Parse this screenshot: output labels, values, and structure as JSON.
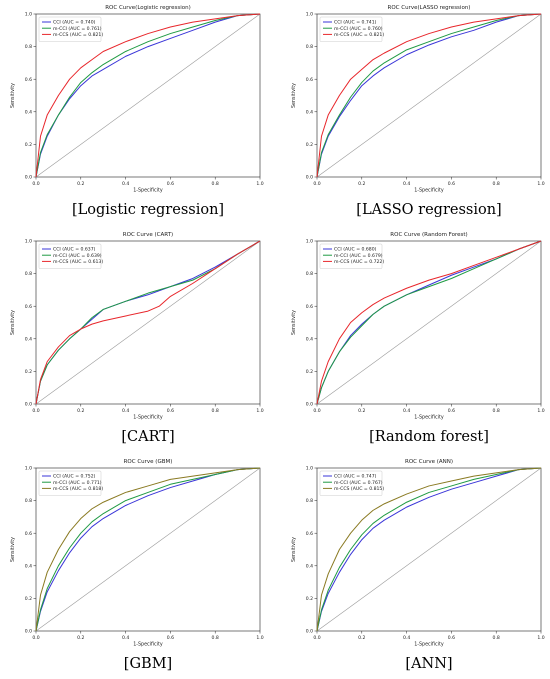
{
  "panel_captions": [
    "[Logistic regression]",
    "[LASSO regression]",
    "[CART]",
    "[Random forest]",
    "[GBM]",
    "[ANN]"
  ],
  "colors": {
    "CCI": "#3a35d8",
    "m-CCI": "#1f9a43",
    "m-CCS_red": "#e8262b",
    "m-CCS_olive": "#8a7a22",
    "diagonal": "#9a9a9a"
  },
  "chart_data": [
    {
      "type": "line",
      "title": "ROC Curve(Logistic regression)",
      "xlabel": "1-Specificity",
      "ylabel": "Sensitivity",
      "xlim": [
        0,
        1
      ],
      "ylim": [
        0,
        1
      ],
      "ticks": [
        "0.0",
        "0.2",
        "0.4",
        "0.6",
        "0.8",
        "1.0"
      ],
      "legend_position": "top-left",
      "series": [
        {
          "name": "CCI (AUC = 0.740)",
          "color_key": "CCI",
          "x": [
            0,
            0.02,
            0.05,
            0.1,
            0.15,
            0.2,
            0.25,
            0.3,
            0.4,
            0.5,
            0.6,
            0.7,
            0.8,
            0.9,
            1.0
          ],
          "y": [
            0,
            0.14,
            0.25,
            0.38,
            0.48,
            0.56,
            0.62,
            0.66,
            0.74,
            0.8,
            0.85,
            0.9,
            0.95,
            0.99,
            1.0
          ]
        },
        {
          "name": "m-CCI (AUC = 0.761)",
          "color_key": "m-CCI",
          "x": [
            0,
            0.02,
            0.05,
            0.1,
            0.15,
            0.2,
            0.25,
            0.3,
            0.4,
            0.5,
            0.6,
            0.7,
            0.8,
            0.9,
            1.0
          ],
          "y": [
            0,
            0.15,
            0.26,
            0.38,
            0.49,
            0.58,
            0.64,
            0.69,
            0.77,
            0.83,
            0.88,
            0.92,
            0.96,
            0.99,
            1.0
          ]
        },
        {
          "name": "m-CCS (AUC = 0.821)",
          "color_key": "m-CCS_red",
          "x": [
            0,
            0.02,
            0.05,
            0.1,
            0.15,
            0.2,
            0.25,
            0.3,
            0.4,
            0.5,
            0.6,
            0.7,
            0.8,
            0.9,
            1.0
          ],
          "y": [
            0,
            0.25,
            0.38,
            0.5,
            0.6,
            0.67,
            0.72,
            0.77,
            0.83,
            0.88,
            0.92,
            0.95,
            0.97,
            0.99,
            1.0
          ]
        }
      ]
    },
    {
      "type": "line",
      "title": "ROC Curve(LASSO regression)",
      "xlabel": "1-Specificity",
      "ylabel": "Sensitivity",
      "xlim": [
        0,
        1
      ],
      "ylim": [
        0,
        1
      ],
      "ticks": [
        "0.0",
        "0.2",
        "0.4",
        "0.6",
        "0.8",
        "1.0"
      ],
      "legend_position": "top-left",
      "series": [
        {
          "name": "CCI (AUC = 0.741)",
          "color_key": "CCI",
          "x": [
            0,
            0.02,
            0.05,
            0.1,
            0.15,
            0.2,
            0.25,
            0.3,
            0.4,
            0.5,
            0.6,
            0.7,
            0.8,
            0.9,
            1.0
          ],
          "y": [
            0,
            0.14,
            0.25,
            0.37,
            0.47,
            0.56,
            0.62,
            0.67,
            0.75,
            0.81,
            0.86,
            0.9,
            0.95,
            0.99,
            1.0
          ]
        },
        {
          "name": "m-CCI (AUC = 0.760)",
          "color_key": "m-CCI",
          "x": [
            0,
            0.02,
            0.05,
            0.1,
            0.15,
            0.2,
            0.25,
            0.3,
            0.4,
            0.5,
            0.6,
            0.7,
            0.8,
            0.9,
            1.0
          ],
          "y": [
            0,
            0.15,
            0.26,
            0.38,
            0.49,
            0.58,
            0.65,
            0.7,
            0.78,
            0.83,
            0.88,
            0.92,
            0.96,
            0.99,
            1.0
          ]
        },
        {
          "name": "m-CCS (AUC = 0.821)",
          "color_key": "m-CCS_red",
          "x": [
            0,
            0.02,
            0.05,
            0.1,
            0.15,
            0.2,
            0.25,
            0.3,
            0.4,
            0.5,
            0.6,
            0.7,
            0.8,
            0.9,
            1.0
          ],
          "y": [
            0,
            0.25,
            0.38,
            0.5,
            0.6,
            0.66,
            0.72,
            0.76,
            0.83,
            0.88,
            0.92,
            0.95,
            0.97,
            0.99,
            1.0
          ]
        }
      ]
    },
    {
      "type": "line",
      "title": "ROC Curve (CART)",
      "xlabel": "1-Specificity",
      "ylabel": "Sensitivity",
      "xlim": [
        0,
        1
      ],
      "ylim": [
        0,
        1
      ],
      "ticks": [
        "0.0",
        "0.2",
        "0.4",
        "0.6",
        "0.8",
        "1.0"
      ],
      "legend_position": "top-left",
      "series": [
        {
          "name": "CCI (AUC = 0.637)",
          "color_key": "CCI",
          "x": [
            0,
            0.02,
            0.05,
            0.1,
            0.15,
            0.2,
            0.25,
            0.3,
            0.4,
            0.5,
            0.6,
            0.7,
            0.8,
            0.9,
            1.0
          ],
          "y": [
            0,
            0.14,
            0.24,
            0.33,
            0.4,
            0.46,
            0.52,
            0.58,
            0.63,
            0.67,
            0.72,
            0.77,
            0.84,
            0.92,
            1.0
          ]
        },
        {
          "name": "m-CCI (AUC = 0.639)",
          "color_key": "m-CCI",
          "x": [
            0,
            0.02,
            0.05,
            0.1,
            0.15,
            0.2,
            0.25,
            0.3,
            0.4,
            0.5,
            0.6,
            0.7,
            0.8,
            0.9,
            1.0
          ],
          "y": [
            0,
            0.14,
            0.24,
            0.33,
            0.4,
            0.46,
            0.53,
            0.58,
            0.63,
            0.68,
            0.72,
            0.76,
            0.83,
            0.92,
            1.0
          ]
        },
        {
          "name": "m-CCS (AUC = 0.613)",
          "color_key": "m-CCS_red",
          "x": [
            0,
            0.02,
            0.05,
            0.1,
            0.15,
            0.2,
            0.25,
            0.3,
            0.4,
            0.5,
            0.55,
            0.6,
            0.7,
            0.8,
            0.9,
            1.0
          ],
          "y": [
            0,
            0.15,
            0.26,
            0.35,
            0.42,
            0.46,
            0.49,
            0.51,
            0.54,
            0.57,
            0.6,
            0.66,
            0.74,
            0.83,
            0.92,
            1.0
          ]
        }
      ]
    },
    {
      "type": "line",
      "title": "ROC Curve (Random Forest)",
      "xlabel": "1-Specificity",
      "ylabel": "Sensitivity",
      "xlim": [
        0,
        1
      ],
      "ylim": [
        0,
        1
      ],
      "ticks": [
        "0.0",
        "0.2",
        "0.4",
        "0.6",
        "0.8",
        "1.0"
      ],
      "legend_position": "top-left",
      "series": [
        {
          "name": "CCI (AUC = 0.680)",
          "color_key": "CCI",
          "x": [
            0,
            0.02,
            0.05,
            0.1,
            0.15,
            0.2,
            0.25,
            0.3,
            0.4,
            0.5,
            0.6,
            0.7,
            0.8,
            0.9,
            1.0
          ],
          "y": [
            0,
            0.1,
            0.2,
            0.32,
            0.42,
            0.49,
            0.55,
            0.6,
            0.67,
            0.73,
            0.79,
            0.84,
            0.89,
            0.95,
            1.0
          ]
        },
        {
          "name": "m-CCI (AUC = 0.679)",
          "color_key": "m-CCI",
          "x": [
            0,
            0.02,
            0.05,
            0.1,
            0.15,
            0.2,
            0.25,
            0.3,
            0.4,
            0.5,
            0.6,
            0.7,
            0.8,
            0.9,
            1.0
          ],
          "y": [
            0,
            0.1,
            0.2,
            0.32,
            0.41,
            0.48,
            0.55,
            0.6,
            0.67,
            0.72,
            0.77,
            0.83,
            0.89,
            0.95,
            1.0
          ]
        },
        {
          "name": "m-CCS (AUC = 0.722)",
          "color_key": "m-CCS_red",
          "x": [
            0,
            0.02,
            0.05,
            0.1,
            0.15,
            0.2,
            0.25,
            0.3,
            0.4,
            0.5,
            0.6,
            0.7,
            0.8,
            0.9,
            1.0
          ],
          "y": [
            0,
            0.14,
            0.26,
            0.4,
            0.5,
            0.56,
            0.61,
            0.65,
            0.71,
            0.76,
            0.8,
            0.85,
            0.9,
            0.95,
            1.0
          ]
        }
      ]
    },
    {
      "type": "line",
      "title": "ROC Curve (GBM)",
      "xlabel": "1-Specificity",
      "ylabel": "Sensitivity",
      "xlim": [
        0,
        1
      ],
      "ylim": [
        0,
        1
      ],
      "ticks": [
        "0.0",
        "0.2",
        "0.4",
        "0.6",
        "0.8",
        "1.0"
      ],
      "legend_position": "top-left",
      "series": [
        {
          "name": "CCI (AUC = 0.752)",
          "color_key": "CCI",
          "x": [
            0,
            0.02,
            0.05,
            0.1,
            0.15,
            0.2,
            0.25,
            0.3,
            0.4,
            0.5,
            0.6,
            0.7,
            0.8,
            0.9,
            1.0
          ],
          "y": [
            0,
            0.12,
            0.24,
            0.37,
            0.48,
            0.57,
            0.64,
            0.69,
            0.77,
            0.83,
            0.88,
            0.92,
            0.96,
            0.99,
            1.0
          ]
        },
        {
          "name": "m-CCI (AUC = 0.771)",
          "color_key": "m-CCI",
          "x": [
            0,
            0.02,
            0.05,
            0.1,
            0.15,
            0.2,
            0.25,
            0.3,
            0.4,
            0.5,
            0.6,
            0.7,
            0.8,
            0.9,
            1.0
          ],
          "y": [
            0,
            0.13,
            0.26,
            0.4,
            0.51,
            0.6,
            0.67,
            0.72,
            0.8,
            0.85,
            0.9,
            0.93,
            0.96,
            0.99,
            1.0
          ]
        },
        {
          "name": "m-CCS (AUC = 0.818)",
          "color_key": "m-CCS_olive",
          "x": [
            0,
            0.02,
            0.05,
            0.1,
            0.15,
            0.2,
            0.25,
            0.3,
            0.4,
            0.5,
            0.6,
            0.7,
            0.8,
            0.9,
            1.0
          ],
          "y": [
            0,
            0.22,
            0.36,
            0.5,
            0.61,
            0.69,
            0.75,
            0.79,
            0.85,
            0.89,
            0.93,
            0.95,
            0.97,
            0.99,
            1.0
          ]
        }
      ]
    },
    {
      "type": "line",
      "title": "ROC Curve (ANN)",
      "xlabel": "1-Specificity",
      "ylabel": "Sensitivity",
      "xlim": [
        0,
        1
      ],
      "ylim": [
        0,
        1
      ],
      "ticks": [
        "0.0",
        "0.2",
        "0.4",
        "0.6",
        "0.8",
        "1.0"
      ],
      "legend_position": "top-left",
      "series": [
        {
          "name": "CCI (AUC = 0.747)",
          "color_key": "CCI",
          "x": [
            0,
            0.02,
            0.05,
            0.1,
            0.15,
            0.2,
            0.25,
            0.3,
            0.4,
            0.5,
            0.6,
            0.7,
            0.8,
            0.9,
            1.0
          ],
          "y": [
            0,
            0.12,
            0.23,
            0.36,
            0.47,
            0.56,
            0.63,
            0.68,
            0.76,
            0.82,
            0.87,
            0.91,
            0.95,
            0.99,
            1.0
          ]
        },
        {
          "name": "m-CCI (AUC = 0.767)",
          "color_key": "m-CCI",
          "x": [
            0,
            0.02,
            0.05,
            0.1,
            0.15,
            0.2,
            0.25,
            0.3,
            0.4,
            0.5,
            0.6,
            0.7,
            0.8,
            0.9,
            1.0
          ],
          "y": [
            0,
            0.13,
            0.25,
            0.39,
            0.5,
            0.59,
            0.66,
            0.71,
            0.79,
            0.85,
            0.89,
            0.93,
            0.96,
            0.99,
            1.0
          ]
        },
        {
          "name": "m-CCS (AUC = 0.815)",
          "color_key": "m-CCS_olive",
          "x": [
            0,
            0.02,
            0.05,
            0.1,
            0.15,
            0.2,
            0.25,
            0.3,
            0.4,
            0.5,
            0.6,
            0.7,
            0.8,
            0.9,
            1.0
          ],
          "y": [
            0,
            0.22,
            0.35,
            0.5,
            0.6,
            0.68,
            0.74,
            0.78,
            0.84,
            0.89,
            0.92,
            0.95,
            0.97,
            0.99,
            1.0
          ]
        }
      ]
    }
  ]
}
